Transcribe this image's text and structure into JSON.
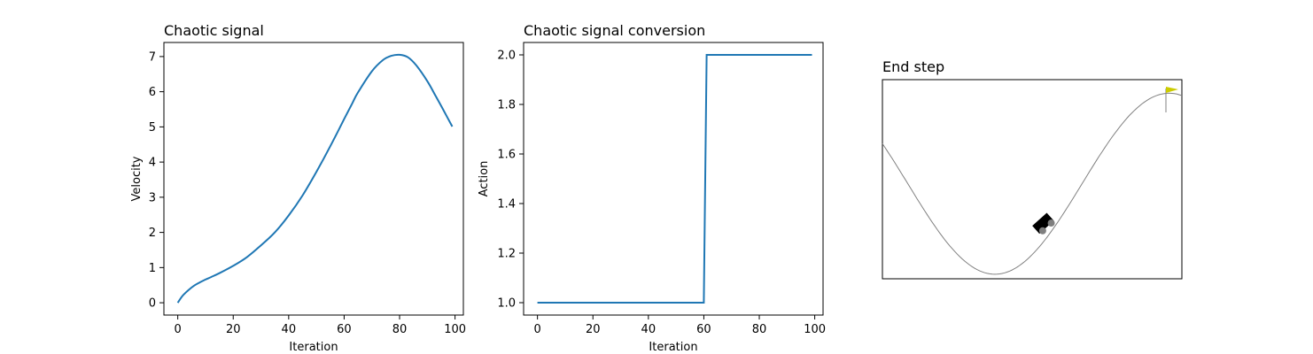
{
  "chart_data": [
    {
      "type": "line",
      "title": "Chaotic signal",
      "xlabel": "Iteration",
      "ylabel": "Velocity",
      "xlim": [
        -5,
        103
      ],
      "ylim": [
        -0.35,
        7.4
      ],
      "xticks": [
        0,
        20,
        40,
        60,
        80,
        100
      ],
      "yticks": [
        0,
        1,
        2,
        3,
        4,
        5,
        6,
        7
      ],
      "color": "#1f77b4",
      "series": [
        {
          "x": [
            0,
            1,
            2,
            4,
            6,
            8,
            10,
            12,
            15,
            20,
            25,
            30,
            35,
            40,
            45,
            50,
            55,
            60,
            63,
            65,
            70,
            74,
            77,
            80,
            83,
            86,
            90,
            93,
            96,
            99
          ],
          "y": [
            0.0,
            0.12,
            0.22,
            0.37,
            0.49,
            0.58,
            0.66,
            0.73,
            0.84,
            1.05,
            1.3,
            1.63,
            2.0,
            2.48,
            3.05,
            3.72,
            4.45,
            5.22,
            5.68,
            5.98,
            6.58,
            6.9,
            7.02,
            7.05,
            6.98,
            6.75,
            6.3,
            5.88,
            5.45,
            5.01
          ]
        }
      ]
    },
    {
      "type": "line",
      "title": "Chaotic signal conversion",
      "xlabel": "Iteration",
      "ylabel": "Action",
      "xlim": [
        -5,
        103
      ],
      "ylim": [
        0.95,
        2.05
      ],
      "xticks": [
        0,
        20,
        40,
        60,
        80,
        100
      ],
      "yticks": [
        1.0,
        1.2,
        1.4,
        1.6,
        1.8,
        2.0
      ],
      "ytick_labels": [
        "1.0",
        "1.2",
        "1.4",
        "1.6",
        "1.8",
        "2.0"
      ],
      "color": "#1f77b4",
      "series": [
        {
          "x": [
            0,
            60,
            61,
            99
          ],
          "y": [
            1.0,
            1.0,
            2.0,
            2.0
          ]
        }
      ]
    },
    {
      "type": "other",
      "title": "End step",
      "description_colors": {
        "terrain": "#808080",
        "car": "#000000",
        "wheel": "#7f7f7f",
        "flag": "#cccc00"
      }
    }
  ]
}
